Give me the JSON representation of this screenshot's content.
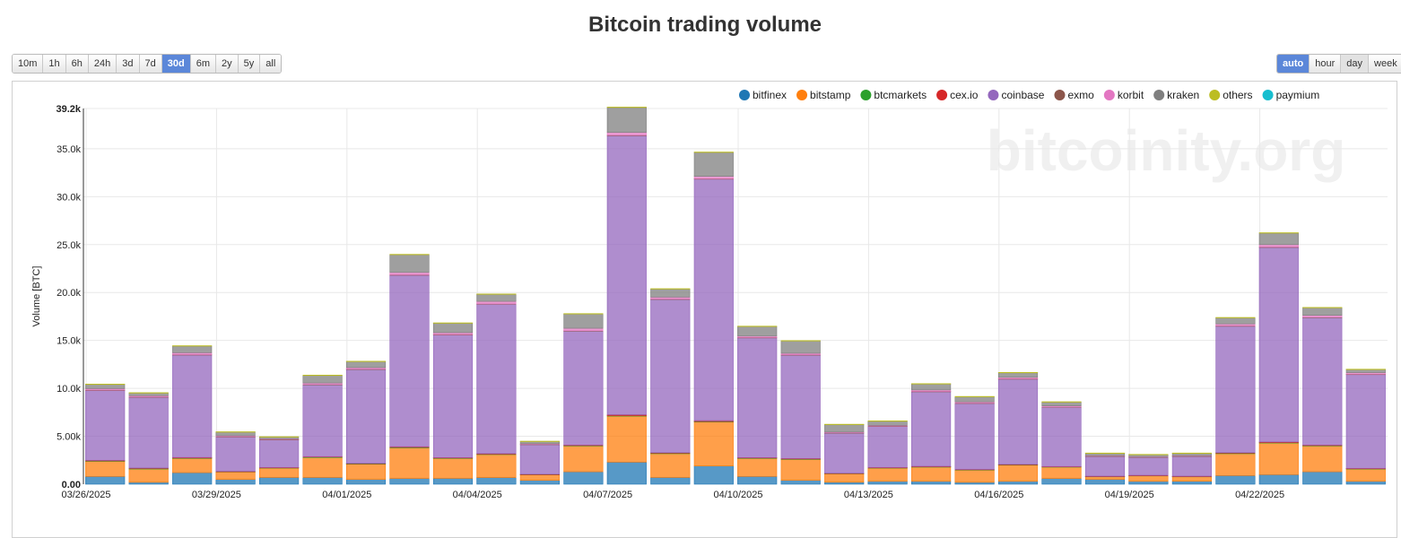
{
  "page": {
    "title": "Bitcoin trading volume",
    "watermark": "bitcoinity.org"
  },
  "range_buttons": [
    "10m",
    "1h",
    "6h",
    "24h",
    "3d",
    "7d",
    "30d",
    "6m",
    "2y",
    "5y",
    "all"
  ],
  "range_active": "30d",
  "interval_buttons": [
    "auto",
    "hour",
    "day",
    "week"
  ],
  "interval_active": "auto",
  "interval_pressed": "day",
  "chart_data": {
    "type": "bar",
    "stacked": true,
    "ylabel": "Volume [BTC]",
    "ylim": [
      0,
      39200
    ],
    "y_ticks": [
      0,
      5000,
      10000,
      15000,
      20000,
      25000,
      30000,
      35000,
      39200
    ],
    "y_tick_labels": [
      "0.00",
      "5.00k",
      "10.0k",
      "15.0k",
      "20.0k",
      "25.0k",
      "30.0k",
      "35.0k",
      "39.2k"
    ],
    "x_tick_labels": [
      {
        "index": 0,
        "label": "03/26/2025"
      },
      {
        "index": 3,
        "label": "03/29/2025"
      },
      {
        "index": 6,
        "label": "04/01/2025"
      },
      {
        "index": 9,
        "label": "04/04/2025"
      },
      {
        "index": 12,
        "label": "04/07/2025"
      },
      {
        "index": 15,
        "label": "04/10/2025"
      },
      {
        "index": 18,
        "label": "04/13/2025"
      },
      {
        "index": 21,
        "label": "04/16/2025"
      },
      {
        "index": 24,
        "label": "04/19/2025"
      },
      {
        "index": 27,
        "label": "04/22/2025"
      }
    ],
    "categories": [
      "03/26/2025",
      "03/27/2025",
      "03/28/2025",
      "03/29/2025",
      "03/30/2025",
      "03/31/2025",
      "04/01/2025",
      "04/02/2025",
      "04/03/2025",
      "04/04/2025",
      "04/05/2025",
      "04/06/2025",
      "04/07/2025",
      "04/08/2025",
      "04/09/2025",
      "04/10/2025",
      "04/11/2025",
      "04/12/2025",
      "04/13/2025",
      "04/14/2025",
      "04/15/2025",
      "04/16/2025",
      "04/17/2025",
      "04/18/2025",
      "04/19/2025",
      "04/20/2025",
      "04/21/2025",
      "04/22/2025",
      "04/23/2025",
      "04/24/2025"
    ],
    "legend_position": "top-right",
    "grid": true,
    "series": [
      {
        "name": "bitfinex",
        "color": "#1f77b4",
        "values": [
          800,
          200,
          1200,
          500,
          700,
          700,
          500,
          600,
          600,
          700,
          400,
          1300,
          2300,
          700,
          1900,
          800,
          400,
          200,
          300,
          300,
          200,
          300,
          600,
          500,
          300,
          300,
          900,
          1000,
          1300,
          300
        ]
      },
      {
        "name": "bitstamp",
        "color": "#ff7f0e",
        "values": [
          1600,
          1400,
          1500,
          800,
          1000,
          2100,
          1600,
          3200,
          2100,
          2400,
          600,
          2700,
          4800,
          2500,
          4600,
          1900,
          2200,
          900,
          1400,
          1500,
          1300,
          1700,
          1200,
          300,
          600,
          500,
          2300,
          3300,
          2700,
          1300
        ]
      },
      {
        "name": "btcmarkets",
        "color": "#2ca02c",
        "values": [
          30,
          30,
          30,
          20,
          20,
          30,
          30,
          40,
          30,
          30,
          20,
          30,
          50,
          30,
          40,
          30,
          30,
          20,
          20,
          20,
          20,
          30,
          20,
          10,
          10,
          10,
          30,
          40,
          30,
          20
        ]
      },
      {
        "name": "cex.io",
        "color": "#d62728",
        "values": [
          60,
          50,
          60,
          30,
          30,
          50,
          50,
          70,
          50,
          60,
          20,
          60,
          100,
          60,
          90,
          50,
          50,
          30,
          30,
          40,
          30,
          40,
          30,
          20,
          20,
          20,
          60,
          70,
          60,
          40
        ]
      },
      {
        "name": "coinbase",
        "color": "#9467bd",
        "values": [
          7300,
          7400,
          10700,
          3600,
          2900,
          7500,
          9800,
          17900,
          12800,
          15600,
          3100,
          11900,
          29100,
          16000,
          25200,
          12500,
          10800,
          4200,
          4300,
          7800,
          6900,
          8900,
          6200,
          2100,
          1900,
          2100,
          13200,
          20300,
          13300,
          9800
        ]
      },
      {
        "name": "exmo",
        "color": "#8c564b",
        "values": [
          30,
          30,
          30,
          20,
          20,
          30,
          30,
          40,
          30,
          30,
          20,
          30,
          50,
          30,
          40,
          30,
          30,
          20,
          20,
          20,
          20,
          30,
          20,
          10,
          10,
          10,
          30,
          40,
          30,
          20
        ]
      },
      {
        "name": "korbit",
        "color": "#e377c2",
        "values": [
          150,
          120,
          200,
          80,
          70,
          150,
          150,
          250,
          200,
          250,
          60,
          250,
          300,
          200,
          250,
          150,
          150,
          70,
          70,
          150,
          120,
          150,
          100,
          40,
          40,
          40,
          200,
          250,
          200,
          150
        ]
      },
      {
        "name": "kraken",
        "color": "#7f7f7f",
        "values": [
          450,
          300,
          700,
          400,
          200,
          800,
          650,
          1850,
          1000,
          750,
          250,
          1500,
          2600,
          850,
          2500,
          1000,
          1300,
          800,
          450,
          650,
          550,
          500,
          420,
          270,
          230,
          270,
          650,
          1200,
          800,
          350
        ]
      },
      {
        "name": "others",
        "color": "#bcbd22",
        "values": [
          30,
          20,
          30,
          20,
          20,
          30,
          30,
          40,
          30,
          30,
          20,
          30,
          50,
          30,
          40,
          30,
          30,
          20,
          20,
          20,
          20,
          20,
          20,
          10,
          10,
          10,
          30,
          40,
          30,
          20
        ]
      },
      {
        "name": "paymium",
        "color": "#17becf",
        "values": [
          0,
          0,
          0,
          0,
          0,
          0,
          0,
          0,
          0,
          0,
          0,
          0,
          0,
          0,
          0,
          0,
          0,
          0,
          0,
          0,
          0,
          0,
          0,
          0,
          0,
          0,
          0,
          0,
          0,
          0
        ]
      }
    ]
  }
}
